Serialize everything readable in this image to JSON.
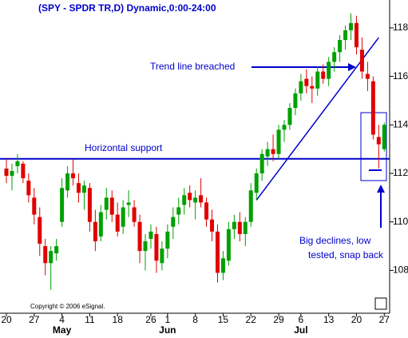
{
  "chart_data": {
    "type": "candlestick",
    "title": "(SPY - SPDR TR,D) Dynamic,0:00-24:00",
    "copyright": "Copyright © 2006 eSignal.",
    "categories": [
      "20",
      null,
      null,
      null,
      null,
      "27",
      null,
      null,
      null,
      null,
      "4",
      null,
      null,
      null,
      null,
      "11",
      null,
      null,
      null,
      null,
      "18",
      null,
      null,
      null,
      null,
      null,
      "26",
      null,
      null,
      "1",
      null,
      null,
      null,
      null,
      "8",
      null,
      null,
      null,
      null,
      "15",
      null,
      null,
      null,
      null,
      "22",
      null,
      null,
      null,
      null,
      "29",
      null,
      null,
      null,
      "6",
      null,
      null,
      null,
      null,
      "13",
      null,
      null,
      null,
      null,
      "20",
      null,
      null,
      null,
      null,
      "27"
    ],
    "months": [
      "May",
      "Jun",
      "Jul"
    ],
    "open": [
      112.2,
      111.9,
      112.3,
      112.4,
      111.7,
      111.0,
      110.2,
      109.0,
      108.3,
      108.7,
      110.0,
      111.3,
      112.0,
      111.6,
      111.2,
      111.4,
      110.0,
      109.4,
      110.5,
      111.0,
      110.3,
      109.8,
      110.7,
      110.6,
      110.0,
      108.8,
      109.3,
      109.5,
      108.3,
      108.9,
      109.8,
      110.3,
      110.7,
      111.2,
      110.8,
      111.1,
      110.8,
      110.1,
      109.6,
      107.9,
      108.4,
      109.7,
      110.0,
      109.5,
      110.0,
      111.2,
      112.0,
      112.7,
      113.0,
      112.8,
      113.8,
      114.0,
      114.7,
      115.3,
      115.9,
      115.6,
      115.5,
      116.2,
      115.9,
      116.6,
      117.0,
      117.5,
      117.9,
      118.2,
      117.1,
      116.1,
      115.8,
      113.5,
      113.0
    ],
    "high": [
      112.6,
      112.4,
      112.8,
      112.5,
      112.0,
      111.4,
      110.6,
      109.3,
      109.0,
      109.3,
      111.8,
      112.3,
      112.6,
      112.0,
      111.7,
      111.6,
      110.5,
      110.7,
      111.4,
      111.3,
      110.8,
      110.9,
      111.3,
      110.9,
      110.3,
      109.5,
      109.9,
      109.8,
      109.2,
      109.9,
      110.6,
      111.0,
      111.4,
      111.5,
      111.3,
      111.8,
      111.0,
      110.5,
      109.9,
      108.8,
      110.0,
      110.3,
      110.4,
      110.2,
      111.6,
      112.2,
      113.0,
      113.3,
      113.6,
      114.0,
      114.2,
      114.9,
      115.5,
      116.1,
      116.3,
      116.0,
      116.4,
      116.5,
      116.8,
      117.2,
      117.7,
      118.1,
      118.6,
      118.5,
      117.6,
      116.6,
      116.0,
      114.0,
      114.1
    ],
    "low": [
      111.6,
      111.3,
      112.0,
      111.6,
      110.8,
      109.9,
      108.6,
      107.8,
      107.2,
      108.4,
      109.8,
      111.0,
      111.5,
      110.8,
      110.5,
      109.6,
      108.8,
      109.2,
      110.1,
      110.0,
      109.4,
      109.5,
      110.2,
      109.8,
      108.3,
      108.0,
      108.9,
      107.9,
      108.0,
      108.5,
      109.3,
      109.9,
      110.3,
      110.6,
      110.1,
      110.6,
      109.8,
      109.2,
      107.5,
      107.6,
      108.2,
      109.3,
      109.2,
      109.0,
      109.8,
      110.9,
      111.7,
      112.3,
      112.5,
      112.6,
      113.3,
      113.8,
      114.4,
      115.0,
      115.3,
      114.9,
      115.2,
      115.7,
      115.6,
      116.2,
      116.6,
      117.1,
      117.5,
      116.9,
      115.9,
      115.4,
      113.4,
      112.2,
      112.9
    ],
    "close": [
      111.9,
      112.1,
      112.5,
      111.8,
      111.1,
      110.3,
      109.1,
      108.3,
      108.8,
      109.0,
      111.4,
      112.0,
      111.8,
      111.2,
      111.5,
      110.0,
      109.2,
      110.4,
      111.0,
      110.3,
      109.6,
      110.6,
      110.8,
      110.0,
      108.8,
      109.2,
      109.6,
      108.4,
      108.9,
      109.6,
      110.2,
      110.6,
      111.1,
      110.9,
      111.0,
      110.8,
      110.1,
      109.6,
      107.9,
      108.5,
      109.7,
      110.0,
      109.5,
      110.0,
      111.3,
      112.0,
      112.8,
      113.0,
      112.8,
      113.8,
      114.0,
      114.7,
      115.3,
      115.8,
      115.6,
      115.5,
      116.2,
      115.9,
      116.6,
      117.0,
      117.5,
      117.9,
      118.2,
      117.2,
      116.2,
      115.9,
      113.6,
      113.2,
      114.0
    ],
    "up_color": "#00a000",
    "down_color": "#e00000",
    "ylim": [
      106.3,
      119.15
    ],
    "yticks": [
      108,
      110,
      112,
      114,
      116,
      118
    ],
    "support_level": 112.6,
    "trend_line": [
      [
        45,
        110.9
      ],
      [
        67,
        117.6
      ]
    ],
    "annotations": {
      "trend": "Trend line breached",
      "support": "Horizontal support",
      "declines": [
        "Big declines, low",
        "tested, snap back"
      ]
    }
  }
}
